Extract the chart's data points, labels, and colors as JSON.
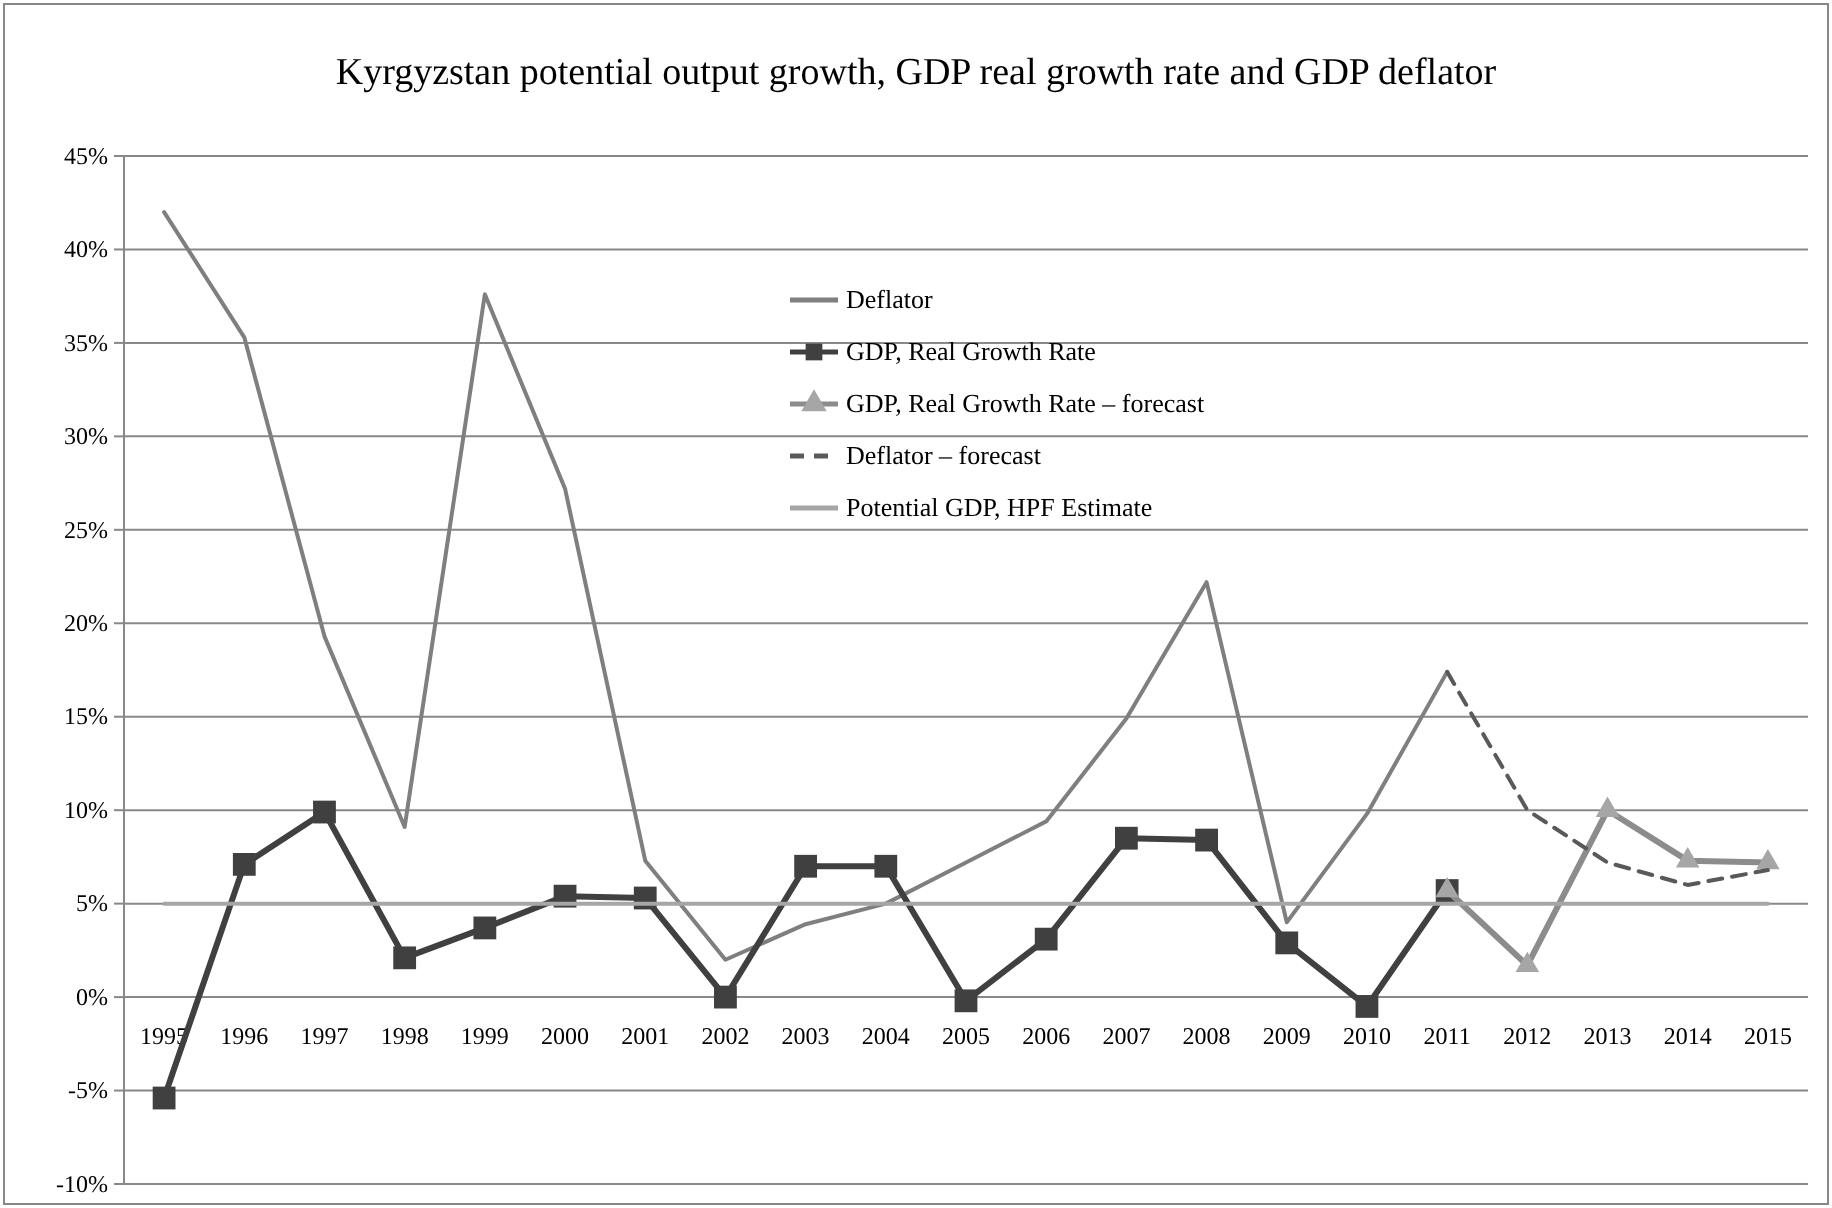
{
  "chart_data": {
    "type": "line",
    "title": "Kyrgyzstan potential output growth, GDP real growth rate and GDP deflator",
    "categories": [
      "1995",
      "1996",
      "1997",
      "1998",
      "1999",
      "2000",
      "2001",
      "2002",
      "2003",
      "2004",
      "2005",
      "2006",
      "2007",
      "2008",
      "2009",
      "2010",
      "2011",
      "2012",
      "2013",
      "2014",
      "2015"
    ],
    "series": [
      {
        "name": "Deflator",
        "color": "#7f7f7f",
        "marker": "none",
        "line_style": "solid",
        "values": [
          42,
          35.3,
          19.3,
          9.1,
          37.6,
          27.2,
          7.3,
          2.0,
          3.9,
          5.0,
          7.2,
          9.4,
          14.9,
          22.2,
          4.0,
          9.8,
          17.4,
          null,
          null,
          null,
          null
        ]
      },
      {
        "name": "GDP, Real Growth Rate",
        "color": "#404040",
        "marker": "square",
        "line_style": "solid",
        "values": [
          -5.4,
          7.1,
          9.9,
          2.1,
          3.7,
          5.4,
          5.3,
          0.0,
          7.0,
          7.0,
          -0.2,
          3.1,
          8.5,
          8.4,
          2.9,
          -0.5,
          5.7,
          null,
          null,
          null,
          null
        ]
      },
      {
        "name": "GDP, Real Growth Rate – forecast",
        "color": "#8c8c8c",
        "marker": "triangle",
        "line_style": "solid",
        "values": [
          null,
          null,
          null,
          null,
          null,
          null,
          null,
          null,
          null,
          null,
          null,
          null,
          null,
          null,
          null,
          null,
          5.7,
          1.7,
          10.0,
          7.3,
          7.2
        ]
      },
      {
        "name": "Deflator – forecast",
        "color": "#595959",
        "marker": "none",
        "line_style": "dashed",
        "values": [
          null,
          null,
          null,
          null,
          null,
          null,
          null,
          null,
          null,
          null,
          null,
          null,
          null,
          null,
          null,
          null,
          17.4,
          10.0,
          7.2,
          6.0,
          6.8
        ]
      },
      {
        "name": "Potential GDP, HPF Estimate",
        "color": "#a6a6a6",
        "marker": "none",
        "line_style": "solid",
        "values": [
          5,
          5,
          5,
          5,
          5,
          5,
          5,
          5,
          5,
          5,
          5,
          5,
          5,
          5,
          5,
          5,
          5,
          5,
          5,
          5,
          5
        ]
      }
    ],
    "ylim": [
      -10,
      45
    ],
    "yticks": [
      {
        "value": -10,
        "label": "-10%"
      },
      {
        "value": -5,
        "label": "-5%"
      },
      {
        "value": 0,
        "label": "0%"
      },
      {
        "value": 5,
        "label": "5%"
      },
      {
        "value": 10,
        "label": "10%"
      },
      {
        "value": 15,
        "label": "15%"
      },
      {
        "value": 20,
        "label": "20%"
      },
      {
        "value": 25,
        "label": "25%"
      },
      {
        "value": 30,
        "label": "30%"
      },
      {
        "value": 35,
        "label": "35%"
      },
      {
        "value": 40,
        "label": "40%"
      },
      {
        "value": 45,
        "label": "45%"
      }
    ],
    "grid": "y",
    "legend": "top"
  }
}
